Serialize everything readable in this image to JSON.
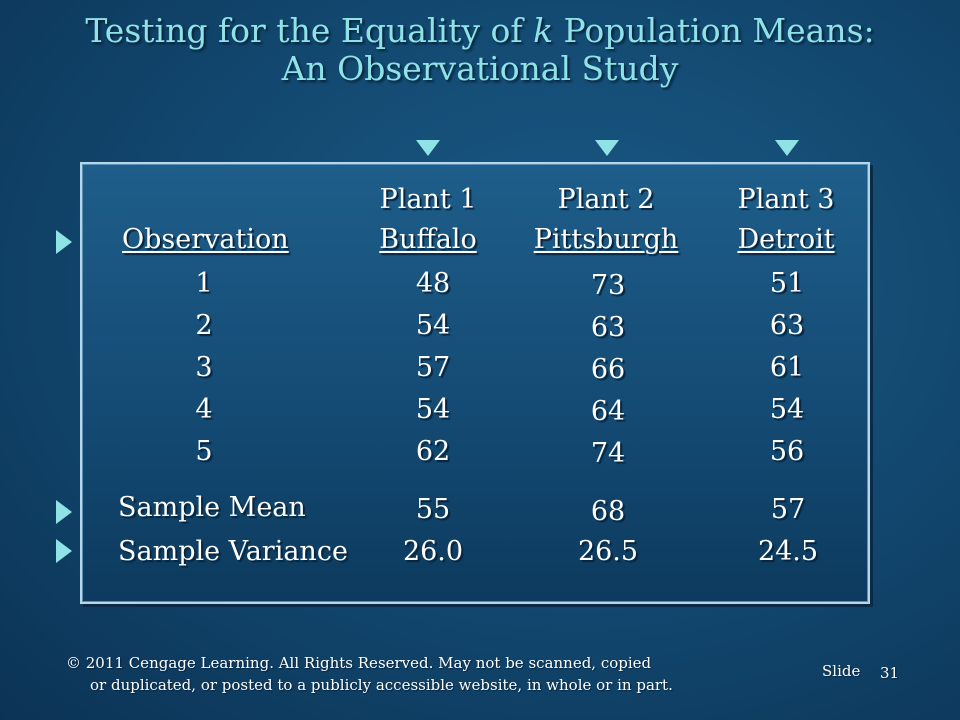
{
  "title": {
    "line1_pre": "Testing for the Equality of ",
    "line1_k": "k",
    "line1_post": "  Population Means:",
    "line2": "An Observational Study"
  },
  "table": {
    "observation_header": "Observation",
    "plants": [
      {
        "name": "Plant 1",
        "city": "Buffalo",
        "values": [
          "48",
          "54",
          "57",
          "54",
          "62"
        ],
        "mean": "55",
        "variance": "26.0"
      },
      {
        "name": "Plant 2",
        "city": "Pittsburgh",
        "values": [
          "73",
          "63",
          "66",
          "64",
          "74"
        ],
        "mean": "68",
        "variance": "26.5"
      },
      {
        "name": "Plant 3",
        "city": "Detroit",
        "values": [
          "51",
          "63",
          "61",
          "54",
          "56"
        ],
        "mean": "57",
        "variance": "24.5"
      }
    ],
    "observations": [
      "1",
      "2",
      "3",
      "4",
      "5"
    ],
    "sample_mean_label": "Sample Mean",
    "sample_variance_label": "Sample Variance"
  },
  "footer": {
    "line1": "© 2011  Cengage Learning.  All Rights Reserved.  May not be scanned, copied",
    "line2": "or duplicated, or posted to a publicly accessible website, in whole or in part.",
    "slide_label": "Slide",
    "slide_number": "31"
  },
  "colors": {
    "title": "#8fe2e6",
    "background": "#134a72",
    "panel_border": "#b8d6ea",
    "bullet": "#8fe2e6"
  },
  "icons": {
    "column_marker": "triangle-down",
    "row_bullet": "triangle-right"
  }
}
